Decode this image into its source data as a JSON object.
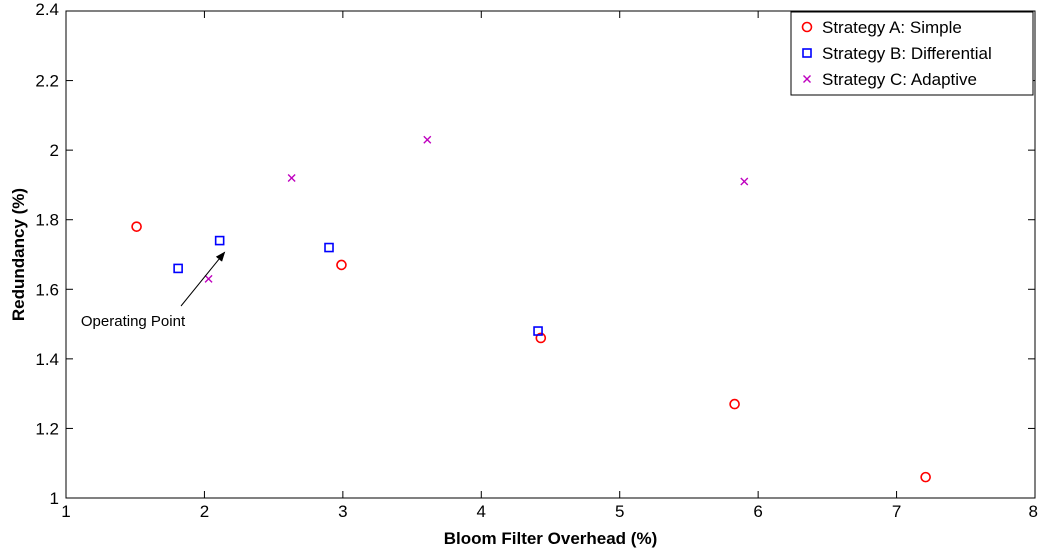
{
  "chart_data": {
    "type": "scatter",
    "title": "",
    "xlabel": "Bloom Filter Overhead (%)",
    "ylabel": "Redundancy (%)",
    "xlim": [
      1,
      8
    ],
    "ylim": [
      1,
      2.4
    ],
    "xticks": [
      1,
      2,
      3,
      4,
      5,
      6,
      7,
      8
    ],
    "yticks": [
      1,
      1.2,
      1.4,
      1.6,
      1.8,
      2,
      2.2,
      2.4
    ],
    "xtick_labels": [
      "1",
      "2",
      "3",
      "4",
      "5",
      "6",
      "7",
      "8"
    ],
    "ytick_labels": [
      "1",
      "1.2",
      "1.4",
      "1.6",
      "1.8",
      "2",
      "2.2",
      "2.4"
    ],
    "grid": false,
    "legend_position": "top-right",
    "series": [
      {
        "name": "Strategy A: Simple",
        "marker": "circle",
        "color": "#ff0000",
        "points": [
          [
            1.51,
            1.78
          ],
          [
            2.99,
            1.67
          ],
          [
            4.43,
            1.46
          ],
          [
            5.83,
            1.27
          ],
          [
            7.21,
            1.06
          ]
        ]
      },
      {
        "name": "Strategy B: Differential",
        "marker": "square",
        "color": "#0000ff",
        "points": [
          [
            1.81,
            1.66
          ],
          [
            2.11,
            1.74
          ],
          [
            2.9,
            1.72
          ],
          [
            4.41,
            1.48
          ]
        ]
      },
      {
        "name": "Strategy C: Adaptive",
        "marker": "x",
        "color": "#bf00bf",
        "points": [
          [
            2.03,
            1.63
          ],
          [
            2.63,
            1.92
          ],
          [
            3.61,
            2.03
          ],
          [
            5.9,
            1.91
          ]
        ]
      }
    ],
    "annotations": [
      {
        "text": "Operating Point",
        "target": [
          2.16,
          1.715
        ]
      }
    ]
  }
}
